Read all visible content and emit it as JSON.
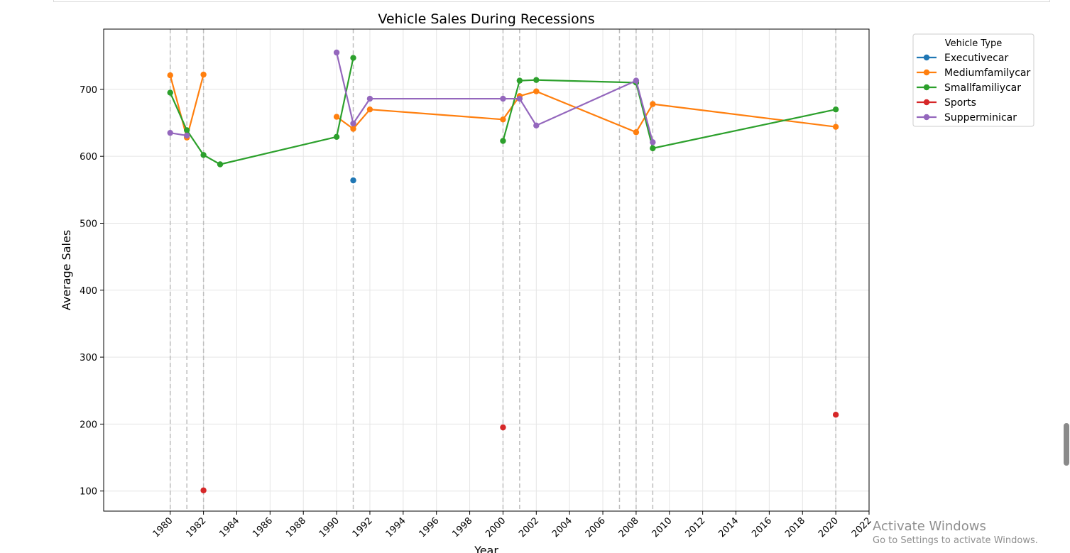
{
  "chart_data": {
    "type": "line",
    "title": "Vehicle Sales During Recessions",
    "xlabel": "Year",
    "ylabel": "Average Sales",
    "xlim": [
      1976,
      2022
    ],
    "ylim": [
      70,
      790
    ],
    "x_ticks": [
      1980,
      1982,
      1984,
      1986,
      1988,
      1990,
      1992,
      1994,
      1996,
      1998,
      2000,
      2002,
      2004,
      2006,
      2008,
      2010,
      2012,
      2014,
      2016,
      2018,
      2020,
      2022
    ],
    "y_ticks": [
      100,
      200,
      300,
      400,
      500,
      600,
      700
    ],
    "grid": true,
    "recession_year_markers": [
      1980,
      1981,
      1982,
      1991,
      2000,
      2001,
      2007,
      2008,
      2009,
      2020
    ],
    "legend": {
      "title": "Vehicle Type",
      "placement": "upper-right, outside plot"
    },
    "series": [
      {
        "name": "Executivecar",
        "color": "#1f77b4",
        "points": [
          [
            1991,
            564
          ]
        ]
      },
      {
        "name": "Mediumfamilycar",
        "color": "#ff7f0e",
        "points": [
          [
            1980,
            721
          ],
          [
            1981,
            628
          ],
          [
            1982,
            722
          ],
          null,
          [
            1990,
            659
          ],
          [
            1991,
            641
          ],
          [
            1992,
            670
          ],
          [
            2000,
            655
          ],
          [
            2001,
            690
          ],
          [
            2002,
            697
          ],
          [
            2008,
            636
          ],
          [
            2009,
            678
          ],
          [
            2020,
            644
          ]
        ]
      },
      {
        "name": "Smallfamiliycar",
        "color": "#2ca02c",
        "points": [
          [
            1980,
            695
          ],
          [
            1981,
            639
          ],
          [
            1982,
            602
          ],
          [
            1983,
            588
          ],
          [
            1990,
            629
          ],
          [
            1991,
            747
          ],
          null,
          [
            2000,
            623
          ],
          [
            2001,
            713
          ],
          [
            2002,
            714
          ],
          [
            2008,
            710
          ],
          [
            2009,
            612
          ],
          [
            2020,
            670
          ]
        ]
      },
      {
        "name": "Sports",
        "color": "#d62728",
        "points": [
          [
            1982,
            101
          ],
          null,
          [
            2000,
            195
          ],
          null,
          [
            2020,
            214
          ]
        ]
      },
      {
        "name": "Supperminicar",
        "color": "#9467bd",
        "points": [
          [
            1980,
            635
          ],
          [
            1981,
            631
          ],
          null,
          [
            1990,
            755
          ],
          [
            1991,
            649
          ],
          [
            1992,
            686
          ],
          [
            2000,
            686
          ],
          [
            2001,
            686
          ],
          [
            2002,
            646
          ],
          [
            2008,
            713
          ],
          [
            2009,
            621
          ]
        ]
      }
    ]
  },
  "watermark": {
    "title": "Activate Windows",
    "subtitle": "Go to Settings to activate Windows."
  }
}
